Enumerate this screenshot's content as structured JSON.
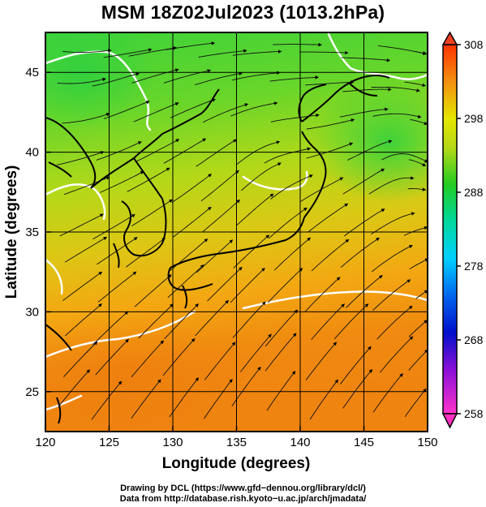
{
  "title": "MSM 18Z02Jul2023 (1013.2hPa)",
  "chart_data": {
    "type": "map",
    "variable_range": [
      258,
      308
    ],
    "xlabel": "Longitude (degrees)",
    "ylabel": "Latitude  (degrees)",
    "xlim": [
      120,
      150
    ],
    "ylim": [
      22.5,
      47.5
    ],
    "x_ticks": [
      120,
      125,
      130,
      135,
      140,
      145,
      150
    ],
    "y_ticks": [
      25,
      30,
      35,
      40,
      45
    ],
    "x_tick_labels": [
      "120",
      "125",
      "130",
      "135",
      "140",
      "145",
      "150"
    ],
    "y_tick_labels": [
      "25",
      "30",
      "35",
      "40",
      "45"
    ],
    "grid": true,
    "colorbar": {
      "min": 258,
      "max": 308,
      "ticks": [
        258,
        268,
        278,
        288,
        298,
        308
      ],
      "tick_labels": [
        "258",
        "268",
        "278",
        "288",
        "298",
        "308"
      ],
      "colors": [
        "#ff33cc",
        "#0000cc",
        "#00d5ff",
        "#22cc22",
        "#e6e600",
        "#ff3300"
      ]
    }
  },
  "credits": {
    "line1": "Drawing by DCL (https://www.gfd−dennou.org/library/dcl/)",
    "line2": "Data from http://database.rish.kyoto−u.ac.jp/arch/jmadata/"
  },
  "colors": {
    "warm": "#f07f10",
    "mild": "#b8d818",
    "cool": "#3fd23a",
    "contour": "#ffffff",
    "land_outline": "#000000"
  }
}
